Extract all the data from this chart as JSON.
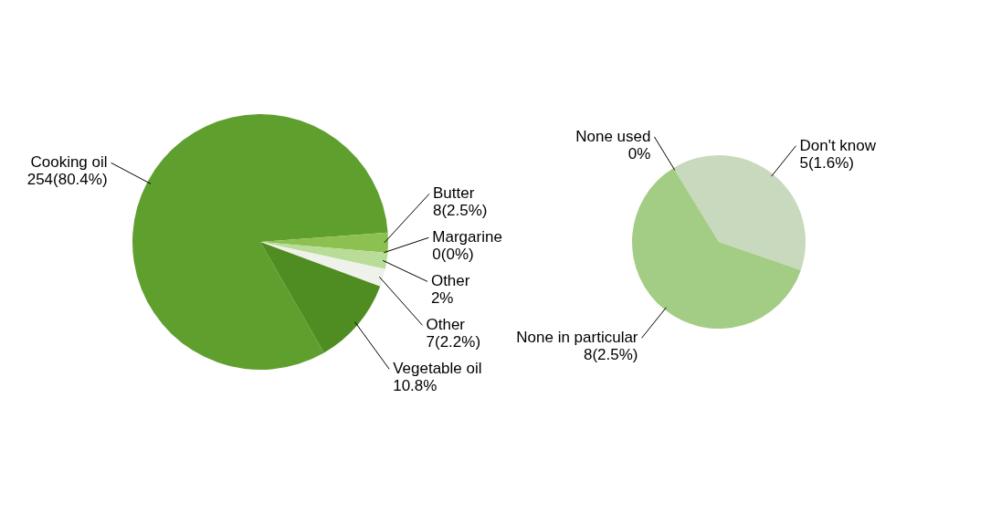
{
  "chart_data": [
    {
      "type": "pie",
      "categories": [
        "Cooking oil",
        "Butter",
        "Margarine",
        "Other",
        "Other",
        "Vegetable oil"
      ],
      "values": [
        80.4,
        2.5,
        0,
        2,
        2.2,
        10.8
      ],
      "colors": [
        "#5f9f2e",
        "#8cc152",
        "#9ccc6a",
        "#b9dc96",
        "#eef2ea",
        "#4f8c22"
      ],
      "value_labels": [
        "254(80.4%)",
        "8(2.5%)",
        "0(0%)",
        "2%",
        "7(2.2%)",
        "10.8%"
      ]
    },
    {
      "type": "pie",
      "categories": [
        "None used",
        "Don't know",
        "None in particular"
      ],
      "values": [
        0,
        1.6,
        2.5
      ],
      "colors": [
        "#a9d18e",
        "#c9d9bd",
        "#a3cc84"
      ],
      "value_labels": [
        "0%",
        "5(1.6%)",
        "8(2.5%)"
      ]
    }
  ]
}
